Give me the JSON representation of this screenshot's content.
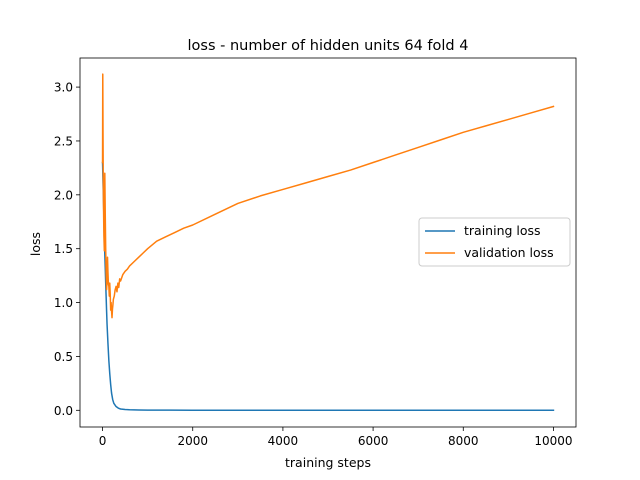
{
  "chart_data": {
    "type": "line",
    "title": "loss - number of hidden units 64 fold 4",
    "xlabel": "training steps",
    "ylabel": "loss",
    "xlim": [
      -500,
      10500
    ],
    "ylim": [
      -0.155,
      3.27
    ],
    "xticks": [
      0,
      2000,
      4000,
      6000,
      8000,
      10000
    ],
    "xtick_labels": [
      "0",
      "2000",
      "4000",
      "6000",
      "8000",
      "10000"
    ],
    "yticks": [
      0.0,
      0.5,
      1.0,
      1.5,
      2.0,
      2.5,
      3.0
    ],
    "ytick_labels": [
      "0.0",
      "0.5",
      "1.0",
      "1.5",
      "2.0",
      "2.5",
      "3.0"
    ],
    "grid": false,
    "legend_position": "center-right",
    "series": [
      {
        "name": "training loss",
        "color": "#1f77b4",
        "x": [
          0,
          10,
          20,
          30,
          40,
          50,
          60,
          70,
          80,
          90,
          100,
          120,
          140,
          160,
          180,
          200,
          225,
          250,
          300,
          350,
          400,
          500,
          600,
          800,
          1000,
          1500,
          2000,
          3000,
          4000,
          5000,
          6000,
          7000,
          8000,
          9000,
          10000
        ],
        "y": [
          2.3,
          2.12,
          1.98,
          1.78,
          1.6,
          1.45,
          1.32,
          1.18,
          1.05,
          0.92,
          0.8,
          0.62,
          0.46,
          0.34,
          0.24,
          0.16,
          0.1,
          0.065,
          0.035,
          0.02,
          0.012,
          0.007,
          0.005,
          0.003,
          0.002,
          0.0015,
          0.001,
          0.001,
          0.001,
          0.001,
          0.001,
          0.001,
          0.001,
          0.001,
          0.001
        ]
      },
      {
        "name": "validation loss",
        "color": "#ff7f0e",
        "x": [
          0,
          5,
          10,
          15,
          20,
          30,
          40,
          50,
          60,
          70,
          80,
          90,
          100,
          110,
          120,
          130,
          140,
          150,
          160,
          170,
          180,
          190,
          200,
          210,
          220,
          230,
          240,
          260,
          280,
          300,
          320,
          340,
          360,
          380,
          400,
          450,
          500,
          550,
          600,
          700,
          800,
          900,
          1000,
          1200,
          1400,
          1600,
          1800,
          2000,
          2500,
          3000,
          3500,
          4000,
          4500,
          5000,
          5500,
          6000,
          6500,
          7000,
          7500,
          8000,
          8500,
          9000,
          9500,
          10000
        ],
        "y": [
          2.3,
          3.12,
          2.6,
          2.2,
          1.95,
          1.62,
          1.48,
          2.2,
          1.82,
          1.5,
          1.28,
          1.12,
          1.2,
          1.42,
          1.28,
          1.17,
          1.15,
          1.06,
          1.18,
          1.08,
          0.93,
          1.0,
          0.92,
          0.86,
          0.94,
          0.98,
          1.03,
          1.06,
          1.12,
          1.15,
          1.1,
          1.18,
          1.14,
          1.22,
          1.2,
          1.26,
          1.29,
          1.31,
          1.34,
          1.38,
          1.42,
          1.46,
          1.5,
          1.57,
          1.61,
          1.65,
          1.69,
          1.72,
          1.82,
          1.92,
          1.99,
          2.05,
          2.11,
          2.17,
          2.23,
          2.3,
          2.37,
          2.44,
          2.51,
          2.58,
          2.64,
          2.7,
          2.76,
          2.82
        ]
      }
    ]
  }
}
